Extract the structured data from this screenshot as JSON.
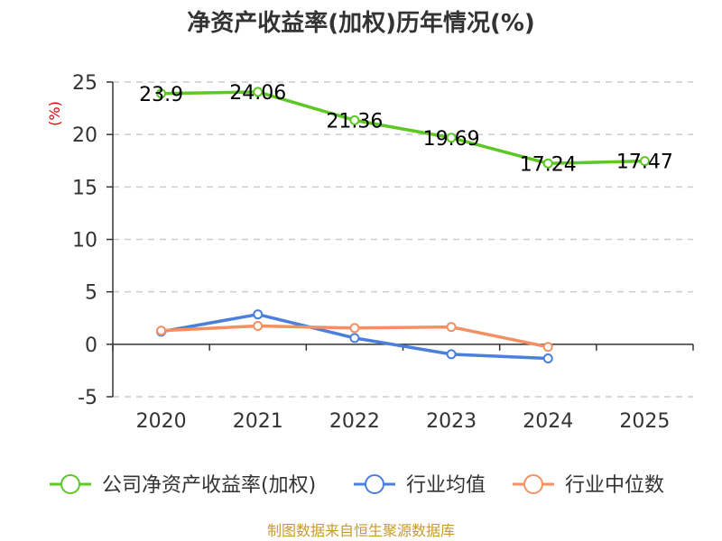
{
  "chart_data": {
    "type": "line",
    "title": "净资产收益率(加权)历年情况(%)",
    "ylabel": "(%)",
    "xlabel": "",
    "categories": [
      "2020",
      "2021",
      "2022",
      "2023",
      "2024",
      "2025"
    ],
    "ylim": [
      -5,
      25
    ],
    "yticks": [
      25,
      20,
      15,
      10,
      5,
      0,
      -5
    ],
    "grid": true,
    "legend_position": "bottom",
    "series": [
      {
        "name": "公司净资产收益率(加权)",
        "color": "#5cc725",
        "values": [
          23.9,
          24.06,
          21.36,
          19.69,
          17.24,
          17.47
        ],
        "labels": [
          "23.9",
          "24.06",
          "21.36",
          "19.69",
          "17.24",
          "17.47"
        ]
      },
      {
        "name": "行业均值",
        "color": "#4a7fdb",
        "values": [
          1.2,
          2.85,
          0.6,
          -0.95,
          -1.35,
          null
        ]
      },
      {
        "name": "行业中位数",
        "color": "#f59062",
        "values": [
          1.3,
          1.75,
          1.55,
          1.65,
          -0.25,
          null
        ]
      }
    ],
    "source": "制图数据来自恒生聚源数据库"
  }
}
